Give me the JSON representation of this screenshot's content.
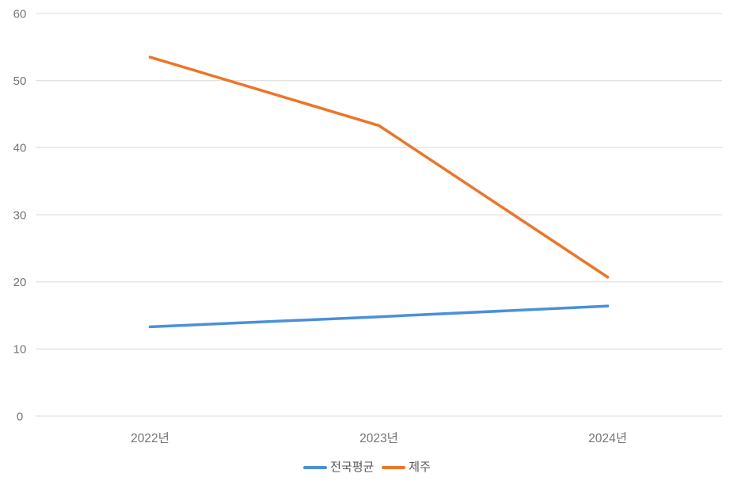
{
  "chart_data": {
    "type": "line",
    "categories": [
      "2022년",
      "2023년",
      "2024년"
    ],
    "series": [
      {
        "name": "전국평균",
        "color": "#4A90D9",
        "values": [
          13.3,
          14.8,
          16.4
        ]
      },
      {
        "name": "제주",
        "color": "#ED7527",
        "values": [
          53.5,
          43.3,
          20.7
        ]
      }
    ],
    "title": "",
    "xlabel": "",
    "ylabel": "",
    "ylim": [
      0,
      60
    ],
    "yticks": [
      0,
      10,
      20,
      30,
      40,
      50,
      60
    ],
    "grid": true,
    "legend_position": "bottom"
  },
  "colors": {
    "background": "#FFFFFF",
    "gridline": "#E2E2E2",
    "tick_label": "#757575",
    "legend_label": "#595959"
  }
}
